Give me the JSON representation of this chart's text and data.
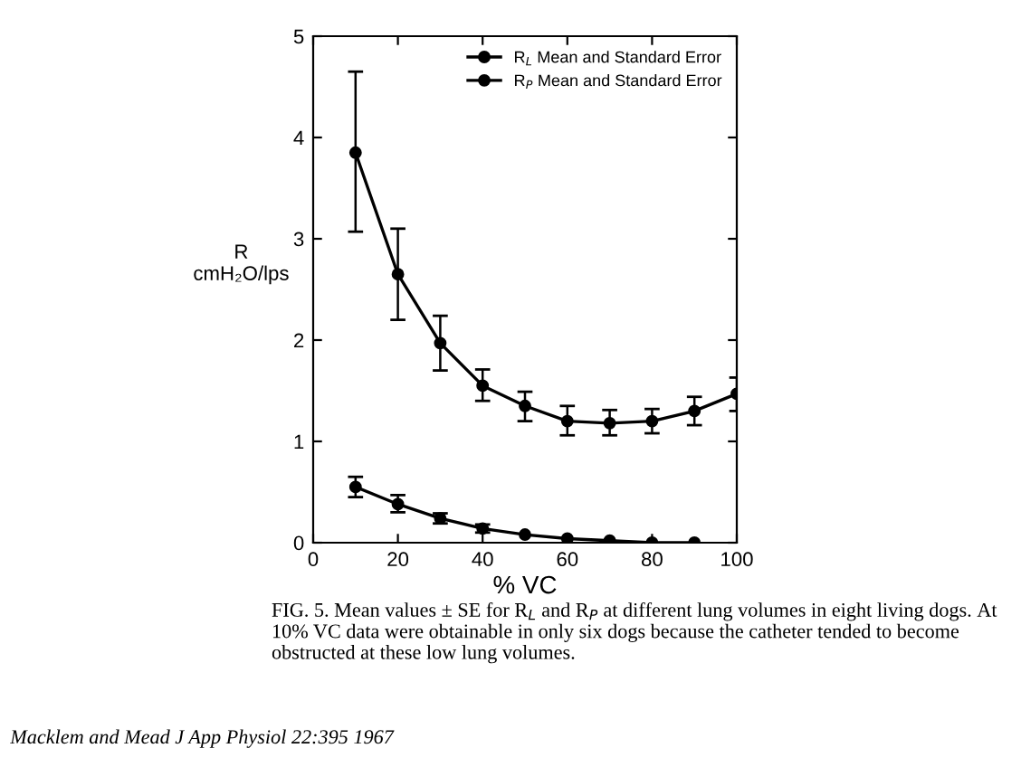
{
  "chart_data": {
    "type": "line",
    "xlabel": "% VC",
    "ylabel": "R\ncmH₂O/lps",
    "x": [
      10,
      20,
      30,
      40,
      50,
      60,
      70,
      80,
      90,
      100
    ],
    "series": [
      {
        "name": "R$_{L}$ Mean and Standard Error",
        "color": "#000000",
        "values": [
          3.85,
          2.65,
          1.97,
          1.55,
          1.35,
          1.2,
          1.18,
          1.2,
          1.3,
          1.47
        ],
        "errors": [
          [
            3.07,
            4.65
          ],
          [
            2.2,
            3.1
          ],
          [
            1.7,
            2.24
          ],
          [
            1.4,
            1.71
          ],
          [
            1.2,
            1.49
          ],
          [
            1.06,
            1.35
          ],
          [
            1.06,
            1.31
          ],
          [
            1.08,
            1.32
          ],
          [
            1.16,
            1.44
          ],
          [
            1.3,
            1.63
          ]
        ]
      },
      {
        "name": "R$_{P}$ Mean and Standard Error",
        "color": "#000000",
        "values": [
          0.55,
          0.38,
          0.24,
          0.14,
          0.08,
          0.04,
          0.02,
          0.0,
          0.0,
          null
        ],
        "errors": [
          [
            0.45,
            0.65
          ],
          [
            0.3,
            0.47
          ],
          [
            0.19,
            0.29
          ],
          [
            0.1,
            0.18
          ],
          null,
          null,
          null,
          null,
          null,
          null
        ]
      }
    ],
    "xlim": [
      0,
      100
    ],
    "xticks": [
      0,
      20,
      40,
      60,
      80,
      100
    ],
    "ylim": [
      0,
      5
    ],
    "yticks": [
      0,
      1,
      2,
      3,
      4,
      5
    ],
    "marker": "circle",
    "line_style": "solid",
    "grid": false,
    "legend": "top right",
    "annotations": [
      "FIG. 5. Mean values ± SE for R$_{L}$ and R$_{P}$ at different lung volumes in eight living dogs. At 10% VC data were obtainable in only six dogs because the catheter tended to become obstructed at these low lung volumes.",
      "Macklem and Mead J App Physiol 22:395 1967"
    ]
  }
}
